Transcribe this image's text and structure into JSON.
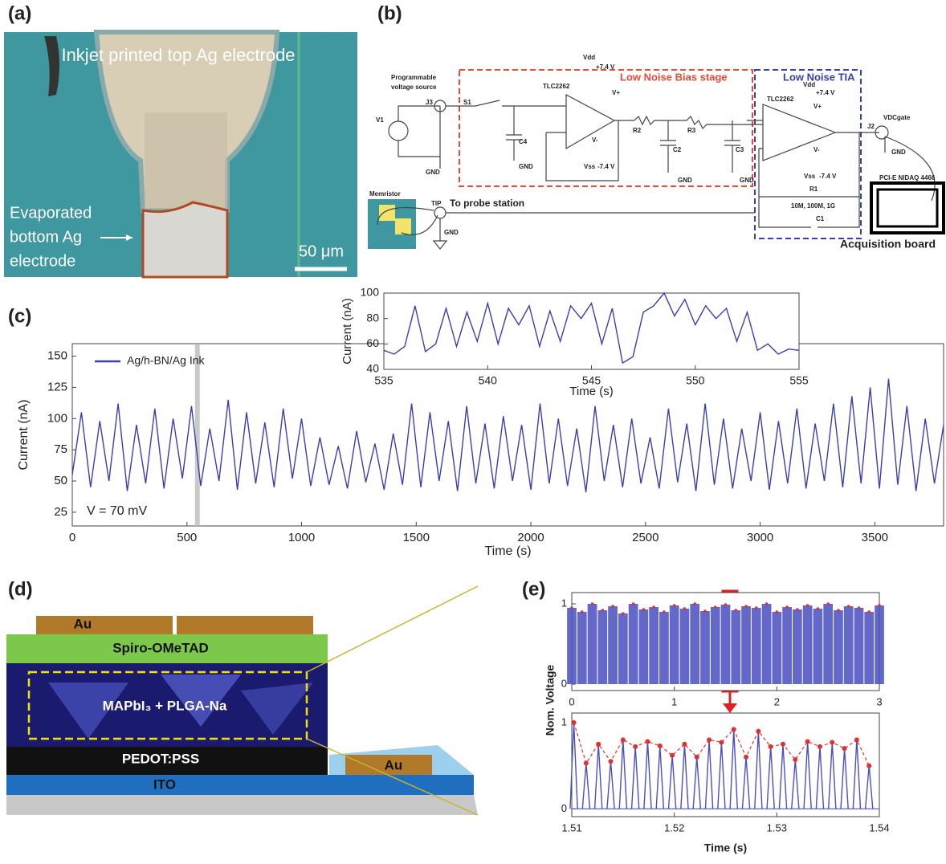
{
  "figure": {
    "panel_labels": [
      "(a)",
      "(b)",
      "(c)",
      "(d)",
      "(e)"
    ],
    "a": {
      "labels": [
        "Inkjet printed top Ag electrode",
        "Evaporated",
        "bottom Ag",
        "electrode",
        "50 μm"
      ]
    },
    "b": {
      "labels": [
        "Programmable",
        "voltage source",
        "V1",
        "J3",
        "S1",
        "TLC2262",
        "Vdd",
        "+7.4 V",
        "V+",
        "V-",
        "Vss",
        "-7.4 V",
        "C4",
        "GND",
        "GND",
        "R2",
        "R3",
        "C2",
        "GND",
        "C3",
        "GND",
        "Low Noise Bias stage",
        "Low Noise TIA",
        "TLC2262",
        "Vdd",
        "+7.4 V",
        "V+",
        "V-",
        "Vss",
        "-7.4 V",
        "R1",
        "10M, 100M, 1G",
        "C1",
        "J2",
        "VDCgate",
        "GND",
        "PCI-E NIDAQ 4466",
        "Acquisition board",
        "Memristor",
        "TIP",
        "To probe station",
        "GND"
      ]
    },
    "d": {
      "labels": [
        "Au",
        "Spiro-OMeTAD",
        "MAPbI₃ + PLGA-Na",
        "PEDOT:PSS",
        "Au",
        "ITO"
      ]
    },
    "e": {
      "ylabel": "Nom. Voltage"
    }
  },
  "chart_data": [
    {
      "type": "line",
      "xlabel": "Time (s)",
      "ylabel": "Current (nA)",
      "annotation": "V = 70 mV",
      "xlim": [
        0,
        3800
      ],
      "ylim": [
        14,
        160
      ],
      "xticks": [
        0,
        500,
        1000,
        1500,
        2000,
        2500,
        3000,
        3500
      ],
      "yticks": [
        25,
        50,
        75,
        100,
        125,
        150
      ],
      "x": [
        0,
        40,
        80,
        120,
        160,
        200,
        240,
        280,
        320,
        360,
        400,
        440,
        480,
        520,
        560,
        600,
        640,
        680,
        720,
        760,
        800,
        840,
        880,
        920,
        960,
        1000,
        1040,
        1080,
        1120,
        1160,
        1200,
        1240,
        1280,
        1320,
        1360,
        1400,
        1440,
        1480,
        1520,
        1560,
        1600,
        1640,
        1680,
        1720,
        1760,
        1800,
        1840,
        1880,
        1920,
        1960,
        2000,
        2040,
        2080,
        2120,
        2160,
        2200,
        2240,
        2280,
        2320,
        2360,
        2400,
        2440,
        2480,
        2520,
        2560,
        2600,
        2640,
        2680,
        2720,
        2760,
        2800,
        2840,
        2880,
        2920,
        2960,
        3000,
        3040,
        3080,
        3120,
        3160,
        3200,
        3240,
        3280,
        3320,
        3360,
        3400,
        3440,
        3480,
        3520,
        3560,
        3600,
        3640,
        3680,
        3720,
        3760,
        3800
      ],
      "series": [
        {
          "name": "Ag/h-BN/Ag Ink",
          "color": "#3a3fb0",
          "values": [
            55,
            105,
            45,
            98,
            50,
            112,
            42,
            95,
            48,
            108,
            44,
            100,
            52,
            110,
            46,
            92,
            50,
            115,
            43,
            105,
            48,
            97,
            45,
            108,
            52,
            100,
            46,
            85,
            47,
            78,
            44,
            90,
            49,
            80,
            43,
            88,
            47,
            112,
            45,
            105,
            50,
            98,
            42,
            110,
            48,
            96,
            44,
            102,
            50,
            95,
            43,
            112,
            48,
            100,
            46,
            92,
            41,
            110,
            50,
            95,
            45,
            100,
            48,
            85,
            44,
            108,
            49,
            96,
            42,
            112,
            47,
            100,
            44,
            92,
            50,
            105,
            43,
            98,
            48,
            108,
            44,
            96,
            50,
            112,
            45,
            118,
            48,
            125,
            44,
            132,
            47,
            110,
            42,
            100,
            48,
            95
          ]
        }
      ],
      "legend": "upper-left"
    },
    {
      "type": "line",
      "xlabel": "Time (s)",
      "ylabel": "Current (nA)",
      "xlim": [
        535,
        555
      ],
      "ylim": [
        40,
        100
      ],
      "xticks": [
        535,
        540,
        545,
        550,
        555
      ],
      "yticks": [
        40,
        60,
        80,
        100
      ],
      "x": [
        535,
        535.5,
        536,
        536.5,
        537,
        537.5,
        538,
        538.5,
        539,
        539.5,
        540,
        540.5,
        541,
        541.5,
        542,
        542.5,
        543,
        543.5,
        544,
        544.5,
        545,
        545.5,
        546,
        546.5,
        547,
        547.5,
        548,
        548.5,
        549,
        549.5,
        550,
        550.5,
        551,
        551.5,
        552,
        552.5,
        553,
        553.5,
        554,
        554.5,
        555
      ],
      "series": [
        {
          "color": "#3a3fb0",
          "values": [
            55,
            52,
            58,
            90,
            54,
            60,
            88,
            58,
            85,
            62,
            92,
            60,
            88,
            75,
            90,
            58,
            86,
            62,
            90,
            80,
            92,
            60,
            88,
            45,
            50,
            85,
            90,
            100,
            82,
            95,
            75,
            90,
            80,
            88,
            62,
            85,
            55,
            60,
            52,
            56,
            55
          ]
        }
      ]
    },
    {
      "type": "stem",
      "xlim": [
        0,
        3
      ],
      "ylim": [
        -0.08,
        1.14
      ],
      "xticks": [
        0,
        1,
        2,
        3
      ],
      "yticks": [
        0,
        1
      ],
      "x": [
        0,
        0.1,
        0.2,
        0.3,
        0.4,
        0.5,
        0.6,
        0.7,
        0.8,
        0.9,
        1,
        1.1,
        1.2,
        1.3,
        1.4,
        1.5,
        1.6,
        1.7,
        1.8,
        1.9,
        2,
        2.1,
        2.2,
        2.3,
        2.4,
        2.5,
        2.6,
        2.7,
        2.8,
        2.9,
        3
      ],
      "series": [
        {
          "color": "#4a50c0",
          "marker_color": "#e03030",
          "values": [
            0.95,
            0.9,
            1,
            0.92,
            0.97,
            0.88,
            1,
            0.93,
            0.96,
            0.9,
            0.98,
            0.94,
            1,
            0.91,
            0.96,
            0.99,
            0.92,
            0.97,
            0.95,
            1,
            0.9,
            0.96,
            0.93,
            0.98,
            0.94,
            1,
            0.92,
            0.97,
            0.95,
            0.9,
            0.98
          ]
        }
      ]
    },
    {
      "type": "pulse",
      "xlabel": "Time (s)",
      "xlim": [
        1.51,
        1.54
      ],
      "ylim": [
        -0.09,
        1.11
      ],
      "xticks": [
        1.51,
        1.52,
        1.53,
        1.54
      ],
      "yticks": [
        0,
        1
      ],
      "x": [
        1.5102,
        1.5114,
        1.5126,
        1.5138,
        1.515,
        1.5162,
        1.5174,
        1.5186,
        1.5198,
        1.521,
        1.5222,
        1.5234,
        1.5246,
        1.5258,
        1.527,
        1.5282,
        1.5294,
        1.5306,
        1.5318,
        1.533,
        1.5342,
        1.5354,
        1.5366,
        1.5378,
        1.539
      ],
      "series": [
        {
          "color": "#4a50c0",
          "marker_color": "#e03030",
          "values": [
            1,
            0.53,
            0.75,
            0.55,
            0.8,
            0.72,
            0.78,
            0.73,
            0.62,
            0.75,
            0.6,
            0.8,
            0.77,
            0.92,
            0.6,
            0.9,
            0.72,
            0.75,
            0.57,
            0.78,
            0.72,
            0.77,
            0.7,
            0.8,
            0.5
          ]
        }
      ]
    }
  ]
}
